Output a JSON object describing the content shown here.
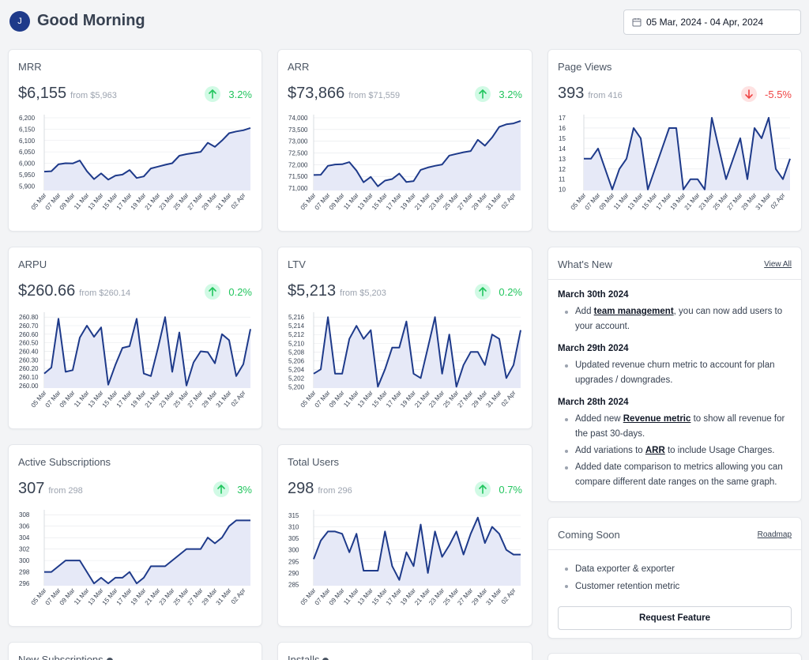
{
  "header": {
    "avatar_initial": "J",
    "greeting": "Good Morning",
    "date_range": "05 Mar, 2024 - 04 Apr, 2024"
  },
  "x_labels": [
    "05 Mar",
    "07 Mar",
    "09 Mar",
    "11 Mar",
    "13 Mar",
    "15 Mar",
    "17 Mar",
    "19 Mar",
    "21 Mar",
    "23 Mar",
    "25 Mar",
    "27 Mar",
    "29 Mar",
    "31 Mar",
    "02 Apr"
  ],
  "metrics": [
    {
      "id": "mrr",
      "title": "MRR",
      "value": "$6,155",
      "from": "from $5,963",
      "direction": "up",
      "change": "3.2%",
      "chart_data": {
        "type": "area",
        "yticks": [
          "6,200",
          "6,150",
          "6,100",
          "6,050",
          "6,000",
          "5,950",
          "5,900"
        ],
        "ylim": [
          5880,
          6200
        ],
        "y": [
          5963,
          5965,
          5995,
          6000,
          5999,
          6012,
          5965,
          5930,
          5955,
          5928,
          5945,
          5950,
          5970,
          5935,
          5942,
          5977,
          5985,
          5993,
          6000,
          6033,
          6040,
          6045,
          6050,
          6090,
          6072,
          6100,
          6132,
          6140,
          6145,
          6155
        ]
      }
    },
    {
      "id": "arr",
      "title": "ARR",
      "value": "$73,866",
      "from": "from $71,559",
      "direction": "up",
      "change": "3.2%",
      "chart_data": {
        "type": "area",
        "yticks": [
          "74,000",
          "73,500",
          "73,000",
          "72,500",
          "72,000",
          "71,500",
          "71,000"
        ],
        "ylim": [
          70900,
          74000
        ],
        "y": [
          71559,
          71570,
          71950,
          72010,
          72020,
          72110,
          71750,
          71250,
          71480,
          71080,
          71320,
          71390,
          71620,
          71260,
          71300,
          71780,
          71880,
          71950,
          72010,
          72390,
          72460,
          72530,
          72580,
          73060,
          72810,
          73160,
          73610,
          73720,
          73760,
          73866
        ]
      }
    },
    {
      "id": "pageviews",
      "title": "Page Views",
      "value": "393",
      "from": "from 416",
      "direction": "down",
      "change": "-5.5%",
      "chart_data": {
        "type": "area",
        "yticks": [
          "17",
          "16",
          "15",
          "14",
          "13",
          "12",
          "11",
          "10"
        ],
        "ylim": [
          9.9,
          17
        ],
        "y": [
          13,
          13,
          14,
          12,
          10,
          12,
          13,
          16,
          15,
          10,
          12,
          14,
          16,
          16,
          10,
          11,
          11,
          10,
          17,
          14,
          11,
          13,
          15,
          11,
          16,
          15,
          17,
          12,
          11,
          13
        ]
      }
    },
    {
      "id": "arpu",
      "title": "ARPU",
      "value": "$260.66",
      "from": "from $260.14",
      "direction": "up",
      "change": "0.2%",
      "chart_data": {
        "type": "area",
        "yticks": [
          "260.80",
          "260.70",
          "260.60",
          "260.50",
          "260.40",
          "260.30",
          "260.20",
          "260.10",
          "260.00"
        ],
        "ylim": [
          259.97,
          260.82
        ],
        "y": [
          260.14,
          260.21,
          260.78,
          260.16,
          260.18,
          260.56,
          260.7,
          260.57,
          260.68,
          260.01,
          260.24,
          260.44,
          260.46,
          260.78,
          260.14,
          260.11,
          260.44,
          260.8,
          260.16,
          260.62,
          260.0,
          260.27,
          260.4,
          260.39,
          260.26,
          260.6,
          260.53,
          260.11,
          260.25,
          260.66
        ]
      }
    },
    {
      "id": "ltv",
      "title": "LTV",
      "value": "$5,213",
      "from": "from $5,203",
      "direction": "up",
      "change": "0.2%",
      "chart_data": {
        "type": "area",
        "yticks": [
          "5,216",
          "5,214",
          "5,212",
          "5,210",
          "5,208",
          "5,206",
          "5,204",
          "5,202",
          "5,200"
        ],
        "ylim": [
          5199.7,
          5216.4
        ],
        "y": [
          5203,
          5204,
          5216,
          5203,
          5203,
          5211,
          5214,
          5211,
          5213,
          5200,
          5204,
          5209,
          5209,
          5215,
          5203,
          5202,
          5209,
          5216,
          5203,
          5212,
          5200,
          5205,
          5208,
          5208,
          5205,
          5212,
          5211,
          5202,
          5205,
          5213
        ]
      }
    },
    {
      "id": "active_subs",
      "title": "Active Subscriptions",
      "value": "307",
      "from": "from 298",
      "direction": "up",
      "change": "3%",
      "chart_data": {
        "type": "area",
        "yticks": [
          "308",
          "306",
          "304",
          "302",
          "300",
          "298",
          "296"
        ],
        "ylim": [
          295.6,
          308.3
        ],
        "y": [
          298,
          298,
          299,
          300,
          300,
          300,
          298,
          296,
          297,
          296,
          297,
          297,
          298,
          296,
          297,
          299,
          299,
          299,
          300,
          301,
          302,
          302,
          302,
          304,
          303,
          304,
          306,
          307,
          307,
          307
        ]
      }
    },
    {
      "id": "total_users",
      "title": "Total Users",
      "value": "298",
      "from": "from 296",
      "direction": "up",
      "change": "0.7%",
      "chart_data": {
        "type": "area",
        "yticks": [
          "315",
          "310",
          "305",
          "300",
          "295",
          "290",
          "285"
        ],
        "ylim": [
          284.5,
          316
        ],
        "y": [
          296,
          304,
          308,
          308,
          307,
          299,
          307,
          291,
          291,
          291,
          308,
          293,
          287,
          299,
          293,
          311,
          290,
          308,
          297,
          302,
          308,
          298,
          307,
          314,
          303,
          310,
          307,
          300,
          298,
          298
        ]
      }
    }
  ],
  "whats_new": {
    "title": "What's New",
    "view_all": "View All",
    "entries": [
      {
        "date": "March 30th 2024",
        "items": [
          {
            "pre": "Add ",
            "link": "team management",
            "post": ", you can now add users to your account."
          }
        ]
      },
      {
        "date": "March 29th 2024",
        "items": [
          {
            "pre": "Updated revenue churn metric to account for plan upgrades / downgrades.",
            "link": "",
            "post": ""
          }
        ]
      },
      {
        "date": "March 28th 2024",
        "items": [
          {
            "pre": "Added new ",
            "link": "Revenue metric",
            "post": " to show all revenue for the past 30-days."
          },
          {
            "pre": "Add variations to ",
            "link": "ARR",
            "post": " to include Usage Charges."
          },
          {
            "pre": "Added date comparison to metrics allowing you can compare different date ranges on the same graph.",
            "link": "",
            "post": ""
          }
        ]
      }
    ]
  },
  "coming_soon": {
    "title": "Coming Soon",
    "roadmap": "Roadmap",
    "items": [
      "Data exporter & exporter",
      "Customer retention metric"
    ],
    "request_button": "Request Feature"
  },
  "bottom_cards": {
    "new_subs": "New Subscriptions",
    "installs": "Installs"
  },
  "colors": {
    "line": "#1e3a8a",
    "fill": "#e6e9f7",
    "grid": "#e5e7eb",
    "up": "#22c55e",
    "down": "#ef4444"
  }
}
